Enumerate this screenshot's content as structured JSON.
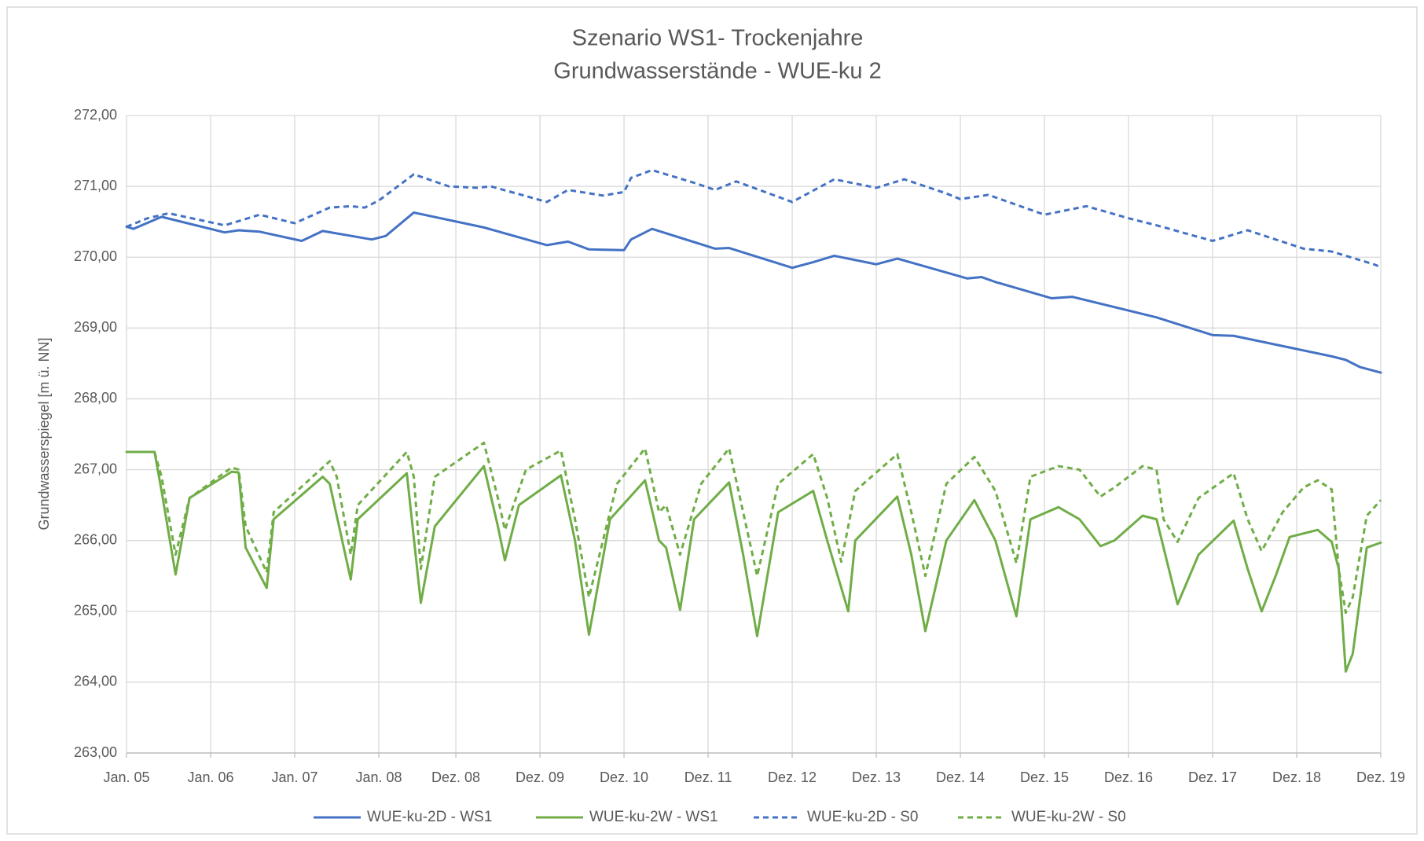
{
  "chart_data": {
    "type": "line",
    "title": "Szenario WS1- Trockenjahre",
    "subtitle": "Grundwasserstände - WUE-ku 2",
    "y_label": "Grundwasserspiegel [m ü. NN]",
    "xlim": [
      "2005-01",
      "2019-12"
    ],
    "xticks": [
      {
        "value": "2005-01",
        "label": "Jan. 05"
      },
      {
        "value": "2006-01",
        "label": "Jan. 06"
      },
      {
        "value": "2007-01",
        "label": "Jan. 07"
      },
      {
        "value": "2008-01",
        "label": "Jan. 08"
      },
      {
        "value": "2008-12",
        "label": "Dez. 08"
      },
      {
        "value": "2009-12",
        "label": "Dez. 09"
      },
      {
        "value": "2010-12",
        "label": "Dez. 10"
      },
      {
        "value": "2011-12",
        "label": "Dez. 11"
      },
      {
        "value": "2012-12",
        "label": "Dez. 12"
      },
      {
        "value": "2013-12",
        "label": "Dez. 13"
      },
      {
        "value": "2014-12",
        "label": "Dez. 14"
      },
      {
        "value": "2015-12",
        "label": "Dez. 15"
      },
      {
        "value": "2016-12",
        "label": "Dez. 16"
      },
      {
        "value": "2017-12",
        "label": "Dez. 17"
      },
      {
        "value": "2018-12",
        "label": "Dez. 18"
      },
      {
        "value": "2019-12",
        "label": "Dez. 19"
      }
    ],
    "ylim": [
      263,
      272
    ],
    "yticks": [
      {
        "value": 263,
        "label": "263,00"
      },
      {
        "value": 264,
        "label": "264,00"
      },
      {
        "value": 265,
        "label": "265,00"
      },
      {
        "value": 266,
        "label": "266,00"
      },
      {
        "value": 267,
        "label": "267,00"
      },
      {
        "value": 268,
        "label": "268,00"
      },
      {
        "value": 269,
        "label": "269,00"
      },
      {
        "value": 270,
        "label": "270,00"
      },
      {
        "value": 271,
        "label": "271,00"
      },
      {
        "value": 272,
        "label": "272,00"
      }
    ],
    "grid": true,
    "legend": "bottom",
    "series": [
      {
        "name": "WUE-ku-2D - WS1",
        "color": "#4472c4",
        "dashed": false,
        "x": [
          "2005-01",
          "2005-02",
          "2005-06",
          "2006-03",
          "2006-05",
          "2006-08",
          "2007-02",
          "2007-05",
          "2007-12",
          "2008-02",
          "2008-06",
          "2009-04",
          "2010-01",
          "2010-04",
          "2010-07",
          "2010-12",
          "2011-01",
          "2011-04",
          "2012-01",
          "2012-03",
          "2012-12",
          "2013-03",
          "2013-06",
          "2013-12",
          "2014-03",
          "2015-01",
          "2015-03",
          "2015-05",
          "2016-01",
          "2016-04",
          "2017-04",
          "2017-12",
          "2018-03",
          "2019-05",
          "2019-07",
          "2019-09",
          "2019-12"
        ],
        "values": [
          270.43,
          270.4,
          270.57,
          270.35,
          270.38,
          270.36,
          270.23,
          270.37,
          270.25,
          270.3,
          270.63,
          270.42,
          270.17,
          270.22,
          270.11,
          270.1,
          270.25,
          270.4,
          270.12,
          270.13,
          269.85,
          269.93,
          270.02,
          269.9,
          269.98,
          269.7,
          269.72,
          269.65,
          269.42,
          269.44,
          269.15,
          268.9,
          268.89,
          268.6,
          268.55,
          268.45,
          268.37
        ]
      },
      {
        "name": "WUE-ku-2W - WS1",
        "color": "#70ad47",
        "dashed": false,
        "x": [
          "2005-01",
          "2005-05",
          "2005-06",
          "2005-08",
          "2005-10",
          "2006-04",
          "2006-05",
          "2006-06",
          "2006-09",
          "2006-10",
          "2007-05",
          "2007-06",
          "2007-09",
          "2007-10",
          "2008-05",
          "2008-07",
          "2008-09",
          "2009-04",
          "2009-06",
          "2009-07",
          "2009-09",
          "2010-03",
          "2010-05",
          "2010-07",
          "2010-10",
          "2011-03",
          "2011-05",
          "2011-06",
          "2011-08",
          "2011-10",
          "2012-03",
          "2012-05",
          "2012-07",
          "2012-10",
          "2013-03",
          "2013-05",
          "2013-08",
          "2013-09",
          "2014-03",
          "2014-05",
          "2014-07",
          "2014-10",
          "2015-02",
          "2015-05",
          "2015-08",
          "2015-10",
          "2016-02",
          "2016-05",
          "2016-08",
          "2016-10",
          "2017-02",
          "2017-04",
          "2017-07",
          "2017-10",
          "2018-03",
          "2018-05",
          "2018-07",
          "2018-09",
          "2018-11",
          "2019-03",
          "2019-05",
          "2019-06",
          "2019-07",
          "2019-08",
          "2019-10",
          "2019-12"
        ],
        "values": [
          267.25,
          267.25,
          266.7,
          265.52,
          266.6,
          266.97,
          266.96,
          265.9,
          265.33,
          266.3,
          266.9,
          266.8,
          265.45,
          266.3,
          266.95,
          265.12,
          266.2,
          267.05,
          266.2,
          265.72,
          266.5,
          266.92,
          266.0,
          264.67,
          266.3,
          266.85,
          266.0,
          265.9,
          265.02,
          266.3,
          266.82,
          265.8,
          264.65,
          266.4,
          266.7,
          266.0,
          265.0,
          266.0,
          266.62,
          265.8,
          264.72,
          266.0,
          266.57,
          266.0,
          264.93,
          266.3,
          266.47,
          266.3,
          265.92,
          266.0,
          266.35,
          266.3,
          265.1,
          265.8,
          266.28,
          265.6,
          265.0,
          265.5,
          266.05,
          266.15,
          265.98,
          265.6,
          264.15,
          264.4,
          265.9,
          265.97
        ]
      },
      {
        "name": "WUE-ku-2D - S0",
        "color": "#4472c4",
        "dashed": true,
        "x": [
          "2005-01",
          "2005-04",
          "2005-07",
          "2006-03",
          "2006-08",
          "2007-01",
          "2007-06",
          "2007-09",
          "2007-11",
          "2008-01",
          "2008-06",
          "2008-11",
          "2009-03",
          "2009-05",
          "2010-01",
          "2010-04",
          "2010-09",
          "2010-12",
          "2011-01",
          "2011-04",
          "2011-10",
          "2012-01",
          "2012-04",
          "2012-12",
          "2013-06",
          "2013-12",
          "2014-04",
          "2014-10",
          "2014-12",
          "2015-04",
          "2015-12",
          "2016-06",
          "2016-12",
          "2017-04",
          "2017-12",
          "2018-05",
          "2019-01",
          "2019-05",
          "2019-11",
          "2019-12"
        ],
        "values": [
          270.43,
          270.55,
          270.62,
          270.45,
          270.6,
          270.48,
          270.7,
          270.72,
          270.7,
          270.8,
          271.17,
          271.0,
          270.98,
          271.0,
          270.78,
          270.95,
          270.87,
          270.92,
          271.12,
          271.23,
          271.05,
          270.95,
          271.07,
          270.78,
          271.1,
          270.98,
          271.1,
          270.9,
          270.82,
          270.88,
          270.6,
          270.72,
          270.55,
          270.45,
          270.23,
          270.38,
          270.12,
          270.08,
          269.9,
          269.86
        ]
      },
      {
        "name": "WUE-ku-2W - S0",
        "color": "#70ad47",
        "dashed": true,
        "x": [
          "2005-01",
          "2005-05",
          "2005-06",
          "2005-08",
          "2005-10",
          "2006-04",
          "2006-05",
          "2006-06",
          "2006-09",
          "2006-10",
          "2007-06",
          "2007-07",
          "2007-09",
          "2007-10",
          "2008-05",
          "2008-06",
          "2008-07",
          "2008-09",
          "2009-04",
          "2009-06",
          "2009-07",
          "2009-10",
          "2010-03",
          "2010-05",
          "2010-07",
          "2010-11",
          "2011-03",
          "2011-05",
          "2011-06",
          "2011-08",
          "2011-11",
          "2012-03",
          "2012-05",
          "2012-07",
          "2012-10",
          "2013-03",
          "2013-05",
          "2013-07",
          "2013-09",
          "2014-03",
          "2014-05",
          "2014-07",
          "2014-10",
          "2015-02",
          "2015-05",
          "2015-08",
          "2015-10",
          "2016-02",
          "2016-05",
          "2016-08",
          "2016-10",
          "2017-02",
          "2017-04",
          "2017-05",
          "2017-07",
          "2017-10",
          "2018-03",
          "2018-05",
          "2018-07",
          "2018-10",
          "2019-01",
          "2019-03",
          "2019-05",
          "2019-06",
          "2019-07",
          "2019-08",
          "2019-10",
          "2019-12"
        ],
        "values": [
          267.25,
          267.25,
          266.9,
          265.8,
          266.6,
          267.03,
          267.0,
          266.2,
          265.55,
          266.4,
          267.12,
          266.9,
          265.8,
          266.5,
          267.25,
          266.9,
          265.6,
          266.9,
          267.38,
          266.6,
          266.15,
          267.0,
          267.27,
          266.3,
          265.2,
          266.8,
          267.3,
          266.4,
          266.5,
          265.8,
          266.8,
          267.3,
          266.4,
          265.5,
          266.8,
          267.22,
          266.6,
          265.7,
          266.7,
          267.22,
          266.4,
          265.5,
          266.8,
          267.18,
          266.7,
          265.68,
          266.9,
          267.05,
          267.0,
          266.62,
          266.75,
          267.05,
          267.0,
          266.3,
          265.98,
          266.6,
          266.95,
          266.3,
          265.85,
          266.4,
          266.75,
          266.85,
          266.72,
          265.6,
          264.98,
          265.2,
          266.35,
          266.57
        ]
      }
    ]
  }
}
